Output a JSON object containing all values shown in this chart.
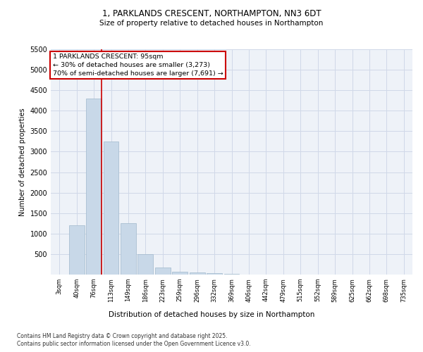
{
  "title_line1": "1, PARKLANDS CRESCENT, NORTHAMPTON, NN3 6DT",
  "title_line2": "Size of property relative to detached houses in Northampton",
  "xlabel": "Distribution of detached houses by size in Northampton",
  "ylabel": "Number of detached properties",
  "categories": [
    "3sqm",
    "40sqm",
    "76sqm",
    "113sqm",
    "149sqm",
    "186sqm",
    "223sqm",
    "259sqm",
    "296sqm",
    "332sqm",
    "369sqm",
    "406sqm",
    "442sqm",
    "479sqm",
    "515sqm",
    "552sqm",
    "589sqm",
    "625sqm",
    "662sqm",
    "698sqm",
    "735sqm"
  ],
  "values": [
    0,
    1200,
    4300,
    3250,
    1250,
    500,
    175,
    75,
    50,
    30,
    15,
    8,
    5,
    4,
    3,
    2,
    2,
    1,
    1,
    1,
    0
  ],
  "bar_color": "#c8d8e8",
  "bar_edgecolor": "#a0b8cc",
  "grid_color": "#d0d8e8",
  "background_color": "#eef2f8",
  "vline_color": "#cc0000",
  "annotation_text": "1 PARKLANDS CRESCENT: 95sqm\n← 30% of detached houses are smaller (3,273)\n70% of semi-detached houses are larger (7,691) →",
  "annotation_box_edgecolor": "#cc0000",
  "ylim": [
    0,
    5500
  ],
  "yticks": [
    0,
    500,
    1000,
    1500,
    2000,
    2500,
    3000,
    3500,
    4000,
    4500,
    5000,
    5500
  ],
  "footer_line1": "Contains HM Land Registry data © Crown copyright and database right 2025.",
  "footer_line2": "Contains public sector information licensed under the Open Government Licence v3.0.",
  "fig_width": 6.0,
  "fig_height": 5.0,
  "dpi": 100
}
